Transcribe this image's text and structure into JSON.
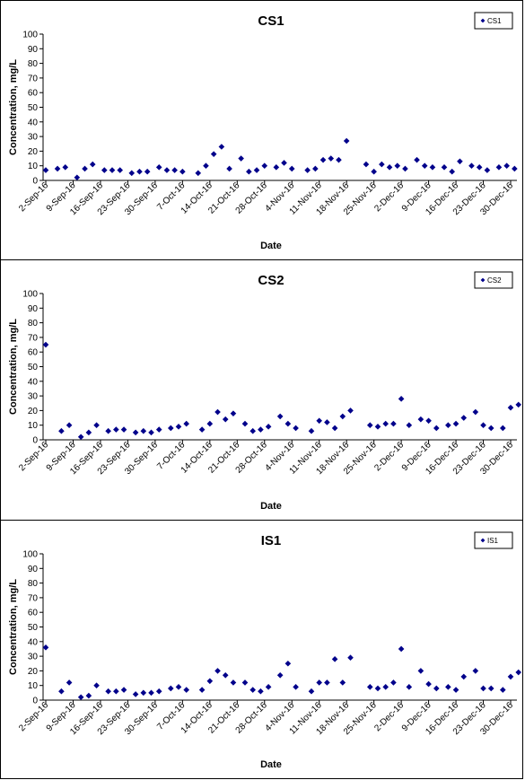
{
  "chart_data": [
    {
      "type": "scatter",
      "title": "CS1",
      "xlabel": "Date",
      "ylabel": "Concentration, mg/L",
      "ylim": [
        0,
        100
      ],
      "yticks": [
        0,
        10,
        20,
        30,
        40,
        50,
        60,
        70,
        80,
        90,
        100
      ],
      "xlim": [
        "2016-09-02",
        "2016-12-30"
      ],
      "xtick_labels": [
        "2-Sep-16",
        "9-Sep-16",
        "16-Sep-16",
        "23-Sep-16",
        "30-Sep-16",
        "7-Oct-16",
        "14-Oct-16",
        "21-Oct-16",
        "28-Oct-16",
        "4-Nov-16",
        "11-Nov-16",
        "18-Nov-16",
        "25-Nov-16",
        "2-Dec-16",
        "9-Dec-16",
        "16-Dec-16",
        "23-Dec-16",
        "30-Dec-16"
      ],
      "grid": false,
      "legend": "top-right",
      "marker_color": "#00008B",
      "series": [
        {
          "name": "CS1",
          "points": [
            [
              "2016-09-02",
              7
            ],
            [
              "2016-09-05",
              8
            ],
            [
              "2016-09-07",
              9
            ],
            [
              "2016-09-10",
              2
            ],
            [
              "2016-09-12",
              8
            ],
            [
              "2016-09-14",
              11
            ],
            [
              "2016-09-17",
              7
            ],
            [
              "2016-09-19",
              7
            ],
            [
              "2016-09-21",
              7
            ],
            [
              "2016-09-24",
              5
            ],
            [
              "2016-09-26",
              6
            ],
            [
              "2016-09-28",
              6
            ],
            [
              "2016-10-01",
              9
            ],
            [
              "2016-10-03",
              7
            ],
            [
              "2016-10-05",
              7
            ],
            [
              "2016-10-07",
              6
            ],
            [
              "2016-10-11",
              5
            ],
            [
              "2016-10-13",
              10
            ],
            [
              "2016-10-15",
              18
            ],
            [
              "2016-10-17",
              23
            ],
            [
              "2016-10-19",
              8
            ],
            [
              "2016-10-22",
              15
            ],
            [
              "2016-10-24",
              6
            ],
            [
              "2016-10-26",
              7
            ],
            [
              "2016-10-28",
              10
            ],
            [
              "2016-10-31",
              9
            ],
            [
              "2016-11-02",
              12
            ],
            [
              "2016-11-04",
              8
            ],
            [
              "2016-11-08",
              7
            ],
            [
              "2016-11-10",
              8
            ],
            [
              "2016-11-12",
              14
            ],
            [
              "2016-11-14",
              15
            ],
            [
              "2016-11-16",
              14
            ],
            [
              "2016-11-18",
              27
            ],
            [
              "2016-11-23",
              11
            ],
            [
              "2016-11-25",
              6
            ],
            [
              "2016-11-27",
              11
            ],
            [
              "2016-11-29",
              9
            ],
            [
              "2016-12-01",
              10
            ],
            [
              "2016-12-03",
              8
            ],
            [
              "2016-12-06",
              14
            ],
            [
              "2016-12-08",
              10
            ],
            [
              "2016-12-10",
              9
            ],
            [
              "2016-12-13",
              9
            ],
            [
              "2016-12-15",
              6
            ],
            [
              "2016-12-17",
              13
            ],
            [
              "2016-12-20",
              10
            ],
            [
              "2016-12-22",
              9
            ],
            [
              "2016-12-24",
              7
            ],
            [
              "2016-12-27",
              9
            ],
            [
              "2016-12-29",
              10
            ],
            [
              "2016-12-31",
              8
            ]
          ]
        }
      ]
    },
    {
      "type": "scatter",
      "title": "CS2",
      "xlabel": "Date",
      "ylabel": "Concentration, mg/L",
      "ylim": [
        0,
        100
      ],
      "yticks": [
        0,
        10,
        20,
        30,
        40,
        50,
        60,
        70,
        80,
        90,
        100
      ],
      "xlim": [
        "2016-09-02",
        "2016-12-30"
      ],
      "xtick_labels": [
        "2-Sep-16",
        "9-Sep-16",
        "16-Sep-16",
        "23-Sep-16",
        "30-Sep-16",
        "7-Oct-16",
        "14-Oct-16",
        "21-Oct-16",
        "28-Oct-16",
        "4-Nov-16",
        "11-Nov-16",
        "18-Nov-16",
        "25-Nov-16",
        "2-Dec-16",
        "9-Dec-16",
        "16-Dec-16",
        "23-Dec-16",
        "30-Dec-16"
      ],
      "grid": false,
      "legend": "top-right",
      "marker_color": "#00008B",
      "series": [
        {
          "name": "CS2",
          "points": [
            [
              "2016-09-02",
              65
            ],
            [
              "2016-09-06",
              6
            ],
            [
              "2016-09-08",
              10
            ],
            [
              "2016-09-11",
              2
            ],
            [
              "2016-09-13",
              5
            ],
            [
              "2016-09-15",
              10
            ],
            [
              "2016-09-18",
              6
            ],
            [
              "2016-09-20",
              7
            ],
            [
              "2016-09-22",
              7
            ],
            [
              "2016-09-25",
              5
            ],
            [
              "2016-09-27",
              6
            ],
            [
              "2016-09-29",
              5
            ],
            [
              "2016-10-01",
              7
            ],
            [
              "2016-10-04",
              8
            ],
            [
              "2016-10-06",
              9
            ],
            [
              "2016-10-08",
              11
            ],
            [
              "2016-10-12",
              7
            ],
            [
              "2016-10-14",
              11
            ],
            [
              "2016-10-16",
              19
            ],
            [
              "2016-10-18",
              14
            ],
            [
              "2016-10-20",
              18
            ],
            [
              "2016-10-23",
              11
            ],
            [
              "2016-10-25",
              6
            ],
            [
              "2016-10-27",
              7
            ],
            [
              "2016-10-29",
              9
            ],
            [
              "2016-11-01",
              16
            ],
            [
              "2016-11-03",
              11
            ],
            [
              "2016-11-05",
              8
            ],
            [
              "2016-11-09",
              6
            ],
            [
              "2016-11-11",
              13
            ],
            [
              "2016-11-13",
              12
            ],
            [
              "2016-11-15",
              8
            ],
            [
              "2016-11-17",
              16
            ],
            [
              "2016-11-19",
              20
            ],
            [
              "2016-11-24",
              10
            ],
            [
              "2016-11-26",
              9
            ],
            [
              "2016-11-28",
              11
            ],
            [
              "2016-11-30",
              11
            ],
            [
              "2016-12-02",
              28
            ],
            [
              "2016-12-04",
              10
            ],
            [
              "2016-12-07",
              14
            ],
            [
              "2016-12-09",
              13
            ],
            [
              "2016-12-11",
              8
            ],
            [
              "2016-12-14",
              10
            ],
            [
              "2016-12-16",
              11
            ],
            [
              "2016-12-18",
              15
            ],
            [
              "2016-12-21",
              19
            ],
            [
              "2016-12-23",
              10
            ],
            [
              "2016-12-25",
              8
            ],
            [
              "2016-12-28",
              8
            ],
            [
              "2016-12-30",
              22
            ],
            [
              "2017-01-01",
              24
            ]
          ]
        }
      ]
    },
    {
      "type": "scatter",
      "title": "IS1",
      "xlabel": "Date",
      "ylabel": "Concentration, mg/L",
      "ylim": [
        0,
        100
      ],
      "yticks": [
        0,
        10,
        20,
        30,
        40,
        50,
        60,
        70,
        80,
        90,
        100
      ],
      "xlim": [
        "2016-09-02",
        "2016-12-30"
      ],
      "xtick_labels": [
        "2-Sep-16",
        "9-Sep-16",
        "16-Sep-16",
        "23-Sep-16",
        "30-Sep-16",
        "7-Oct-16",
        "14-Oct-16",
        "21-Oct-16",
        "28-Oct-16",
        "4-Nov-16",
        "11-Nov-16",
        "18-Nov-16",
        "25-Nov-16",
        "2-Dec-16",
        "9-Dec-16",
        "16-Dec-16",
        "23-Dec-16",
        "30-Dec-16"
      ],
      "grid": false,
      "legend": "top-right",
      "marker_color": "#00008B",
      "series": [
        {
          "name": "IS1",
          "points": [
            [
              "2016-09-02",
              36
            ],
            [
              "2016-09-06",
              6
            ],
            [
              "2016-09-08",
              12
            ],
            [
              "2016-09-11",
              2
            ],
            [
              "2016-09-13",
              3
            ],
            [
              "2016-09-15",
              10
            ],
            [
              "2016-09-18",
              6
            ],
            [
              "2016-09-20",
              6
            ],
            [
              "2016-09-22",
              7
            ],
            [
              "2016-09-25",
              4
            ],
            [
              "2016-09-27",
              5
            ],
            [
              "2016-09-29",
              5
            ],
            [
              "2016-10-01",
              6
            ],
            [
              "2016-10-04",
              8
            ],
            [
              "2016-10-06",
              9
            ],
            [
              "2016-10-08",
              7
            ],
            [
              "2016-10-12",
              7
            ],
            [
              "2016-10-14",
              13
            ],
            [
              "2016-10-16",
              20
            ],
            [
              "2016-10-18",
              17
            ],
            [
              "2016-10-20",
              12
            ],
            [
              "2016-10-23",
              12
            ],
            [
              "2016-10-25",
              7
            ],
            [
              "2016-10-27",
              6
            ],
            [
              "2016-10-29",
              9
            ],
            [
              "2016-11-01",
              17
            ],
            [
              "2016-11-03",
              25
            ],
            [
              "2016-11-05",
              9
            ],
            [
              "2016-11-09",
              6
            ],
            [
              "2016-11-11",
              12
            ],
            [
              "2016-11-13",
              12
            ],
            [
              "2016-11-15",
              28
            ],
            [
              "2016-11-17",
              12
            ],
            [
              "2016-11-19",
              29
            ],
            [
              "2016-11-24",
              9
            ],
            [
              "2016-11-26",
              8
            ],
            [
              "2016-11-28",
              9
            ],
            [
              "2016-11-30",
              12
            ],
            [
              "2016-12-02",
              35
            ],
            [
              "2016-12-04",
              9
            ],
            [
              "2016-12-07",
              20
            ],
            [
              "2016-12-09",
              11
            ],
            [
              "2016-12-11",
              8
            ],
            [
              "2016-12-14",
              9
            ],
            [
              "2016-12-16",
              7
            ],
            [
              "2016-12-18",
              16
            ],
            [
              "2016-12-21",
              20
            ],
            [
              "2016-12-23",
              8
            ],
            [
              "2016-12-25",
              8
            ],
            [
              "2016-12-28",
              7
            ],
            [
              "2016-12-30",
              16
            ],
            [
              "2017-01-01",
              19
            ]
          ]
        }
      ]
    }
  ]
}
